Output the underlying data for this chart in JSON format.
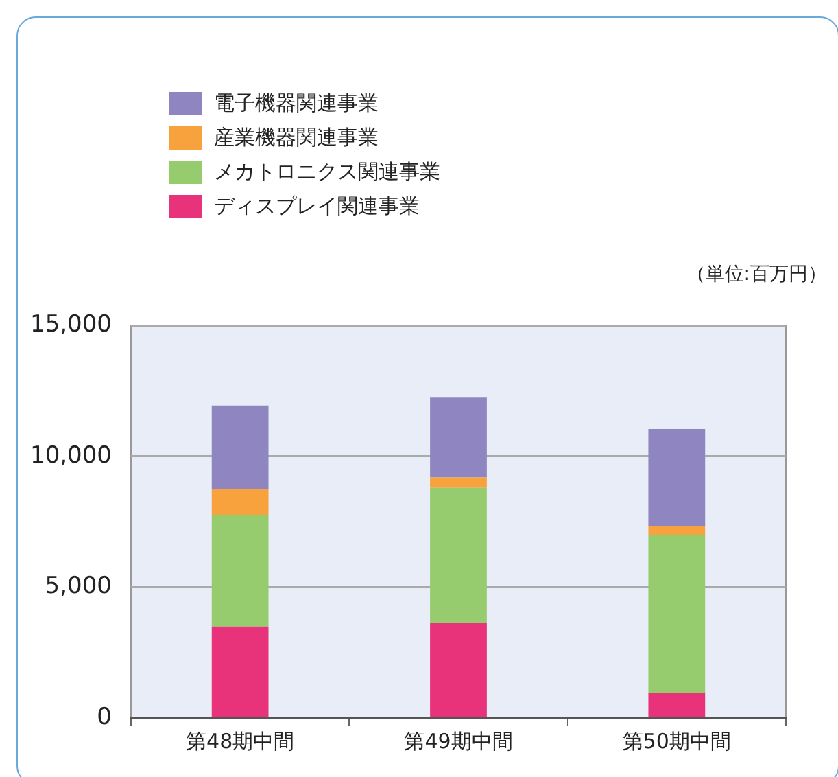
{
  "chart_data": {
    "type": "bar",
    "stacked": true,
    "categories": [
      "第48期中間",
      "第49期中間",
      "第50期中間"
    ],
    "series": [
      {
        "name": "ディスプレイ関連事業",
        "color": "#e8337a",
        "values": [
          3500,
          3650,
          950
        ]
      },
      {
        "name": "メカトロニクス関連事業",
        "color": "#96cc6e",
        "values": [
          4250,
          5150,
          6050
        ]
      },
      {
        "name": "産業機器関連事業",
        "color": "#f7a23c",
        "values": [
          1000,
          400,
          350
        ]
      },
      {
        "name": "電子機器関連事業",
        "color": "#8f85c0",
        "values": [
          3200,
          3050,
          3700
        ]
      }
    ],
    "ylim": [
      0,
      15000
    ],
    "yticks": [
      {
        "value": 0,
        "label": "0"
      },
      {
        "value": 5000,
        "label": "5,000"
      },
      {
        "value": 10000,
        "label": "10,000"
      },
      {
        "value": 15000,
        "label": "15,000"
      }
    ],
    "grid": "y",
    "legend": "top left",
    "annotations": [
      "（単位:百万円）"
    ]
  }
}
